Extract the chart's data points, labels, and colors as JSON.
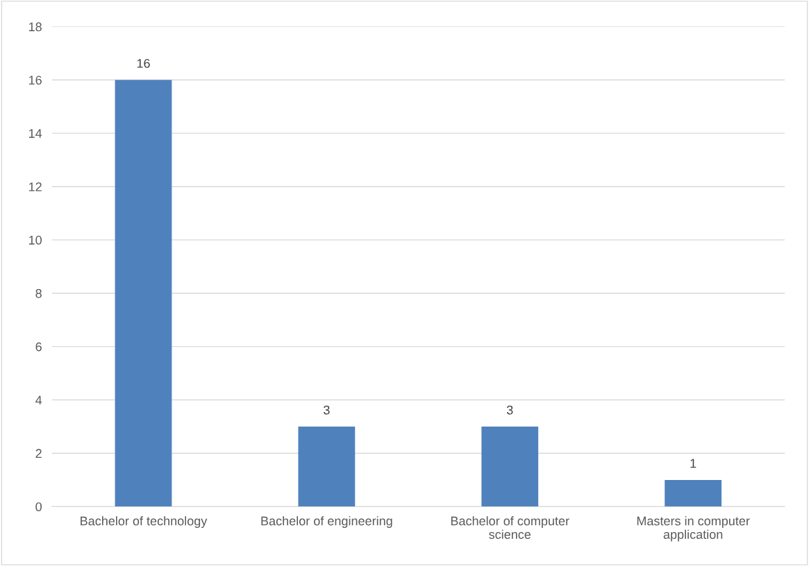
{
  "chart_data": {
    "type": "bar",
    "categories": [
      "Bachelor of technology",
      "Bachelor of engineering",
      "Bachelor of computer science",
      "Masters in computer application"
    ],
    "values": [
      16,
      3,
      3,
      1
    ],
    "color": "#4f81bd",
    "ylim": [
      0,
      18
    ],
    "yticks": [
      0,
      2,
      4,
      6,
      8,
      10,
      12,
      14,
      16,
      18
    ],
    "grid": "y",
    "data_labels": true
  }
}
